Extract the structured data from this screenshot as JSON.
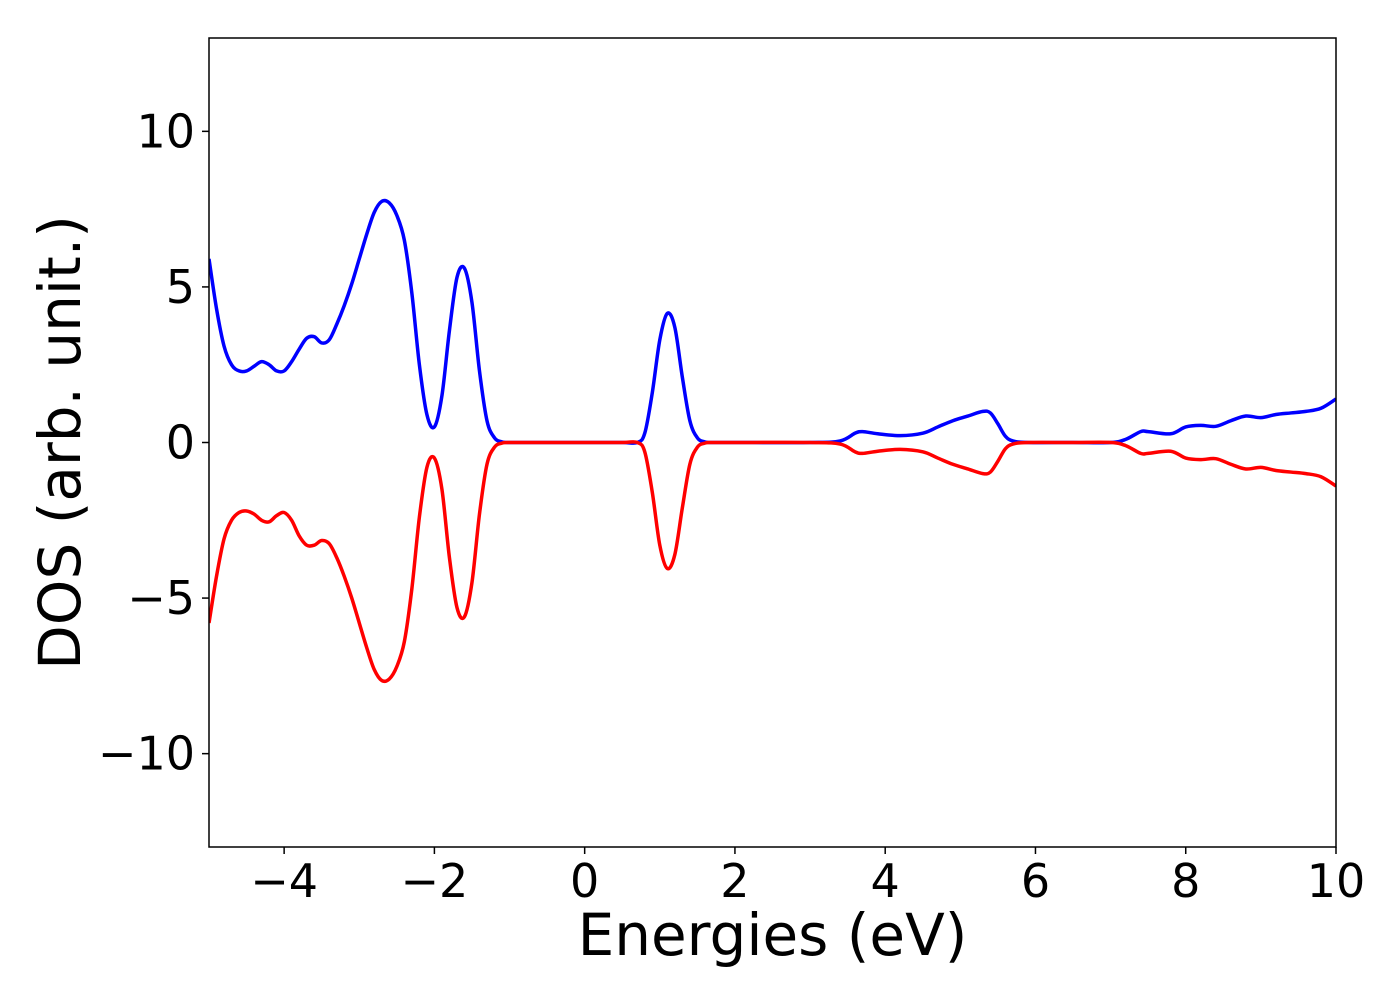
{
  "chart_data": {
    "type": "line",
    "title": "",
    "xlabel": "Energies (eV)",
    "ylabel": "DOS (arb. unit.)",
    "xlim": [
      -5,
      10
    ],
    "ylim": [
      -13,
      13
    ],
    "xticks": [
      -4,
      -2,
      0,
      2,
      4,
      6,
      8,
      10
    ],
    "yticks": [
      -10,
      -5,
      0,
      5,
      10
    ],
    "xtick_labels": [
      "−4",
      "−2",
      "0",
      "2",
      "4",
      "6",
      "8",
      "10"
    ],
    "ytick_labels": [
      "−10",
      "−5",
      "0",
      "5",
      "10"
    ],
    "grid": false,
    "legend": "none",
    "series": [
      {
        "color": "#0000ff",
        "x": [
          -5.0,
          -4.9,
          -4.8,
          -4.7,
          -4.6,
          -4.5,
          -4.4,
          -4.3,
          -4.2,
          -4.1,
          -4.0,
          -3.9,
          -3.8,
          -3.7,
          -3.6,
          -3.5,
          -3.4,
          -3.3,
          -3.2,
          -3.1,
          -3.0,
          -2.9,
          -2.8,
          -2.7,
          -2.6,
          -2.5,
          -2.4,
          -2.3,
          -2.2,
          -2.1,
          -2.0,
          -1.9,
          -1.8,
          -1.7,
          -1.6,
          -1.5,
          -1.4,
          -1.3,
          -1.2,
          -1.1,
          -1.0,
          -0.9,
          -0.8,
          -0.7,
          -0.6,
          -0.5,
          0.0,
          0.5,
          0.7,
          0.8,
          0.9,
          1.0,
          1.1,
          1.2,
          1.3,
          1.4,
          1.5,
          1.6,
          1.7,
          1.8,
          2.0,
          3.0,
          3.4,
          3.6,
          3.7,
          3.9,
          4.2,
          4.5,
          4.7,
          4.9,
          5.1,
          5.3,
          5.4,
          5.5,
          5.6,
          5.7,
          5.9,
          6.5,
          7.0,
          7.2,
          7.4,
          7.5,
          7.8,
          8.0,
          8.2,
          8.4,
          8.6,
          8.8,
          9.0,
          9.2,
          9.4,
          9.6,
          9.8,
          10.0
        ],
        "y": [
          5.9,
          4.3,
          3.1,
          2.5,
          2.3,
          2.3,
          2.45,
          2.6,
          2.5,
          2.3,
          2.3,
          2.6,
          3.0,
          3.35,
          3.4,
          3.2,
          3.3,
          3.8,
          4.4,
          5.1,
          5.9,
          6.7,
          7.4,
          7.75,
          7.7,
          7.3,
          6.5,
          4.8,
          2.5,
          0.9,
          0.5,
          1.5,
          3.6,
          5.3,
          5.6,
          4.5,
          2.3,
          0.7,
          0.15,
          0.02,
          0.0,
          0.0,
          0.0,
          0.0,
          0.0,
          0.0,
          0.0,
          0.0,
          0.0,
          0.3,
          1.6,
          3.3,
          4.15,
          3.7,
          2.1,
          0.7,
          0.15,
          0.02,
          0.0,
          0.0,
          0.0,
          0.0,
          0.05,
          0.3,
          0.35,
          0.28,
          0.22,
          0.3,
          0.5,
          0.7,
          0.85,
          1.0,
          0.95,
          0.6,
          0.2,
          0.05,
          0.0,
          0.0,
          0.0,
          0.1,
          0.35,
          0.35,
          0.28,
          0.5,
          0.55,
          0.52,
          0.7,
          0.85,
          0.8,
          0.9,
          0.95,
          1.0,
          1.1,
          1.4
        ]
      },
      {
        "color": "#ff0000",
        "x": [
          -5.0,
          -4.9,
          -4.8,
          -4.7,
          -4.6,
          -4.5,
          -4.4,
          -4.3,
          -4.2,
          -4.1,
          -4.0,
          -3.9,
          -3.8,
          -3.7,
          -3.6,
          -3.5,
          -3.4,
          -3.3,
          -3.2,
          -3.1,
          -3.0,
          -2.9,
          -2.8,
          -2.7,
          -2.6,
          -2.5,
          -2.4,
          -2.3,
          -2.2,
          -2.1,
          -2.0,
          -1.9,
          -1.8,
          -1.7,
          -1.6,
          -1.5,
          -1.4,
          -1.3,
          -1.2,
          -1.1,
          -1.0,
          -0.9,
          -0.8,
          -0.7,
          -0.6,
          -0.5,
          0.0,
          0.5,
          0.7,
          0.8,
          0.9,
          1.0,
          1.1,
          1.2,
          1.3,
          1.4,
          1.5,
          1.6,
          1.7,
          1.8,
          2.0,
          3.0,
          3.4,
          3.6,
          3.7,
          3.9,
          4.2,
          4.5,
          4.7,
          4.9,
          5.1,
          5.3,
          5.4,
          5.5,
          5.6,
          5.7,
          5.9,
          6.5,
          7.0,
          7.2,
          7.4,
          7.5,
          7.8,
          8.0,
          8.2,
          8.4,
          8.6,
          8.8,
          9.0,
          9.2,
          9.4,
          9.6,
          9.8,
          10.0
        ],
        "y": [
          -5.8,
          -4.3,
          -3.1,
          -2.5,
          -2.25,
          -2.2,
          -2.3,
          -2.5,
          -2.55,
          -2.35,
          -2.25,
          -2.5,
          -3.0,
          -3.3,
          -3.3,
          -3.15,
          -3.25,
          -3.7,
          -4.3,
          -5.0,
          -5.8,
          -6.6,
          -7.3,
          -7.65,
          -7.6,
          -7.2,
          -6.4,
          -4.7,
          -2.4,
          -0.8,
          -0.5,
          -1.5,
          -3.7,
          -5.3,
          -5.6,
          -4.5,
          -2.3,
          -0.7,
          -0.15,
          -0.02,
          0.0,
          0.0,
          0.0,
          0.0,
          0.0,
          0.0,
          0.0,
          0.0,
          0.0,
          -0.3,
          -1.6,
          -3.3,
          -4.05,
          -3.6,
          -2.1,
          -0.7,
          -0.15,
          -0.02,
          0.0,
          0.0,
          0.0,
          0.0,
          -0.05,
          -0.3,
          -0.35,
          -0.28,
          -0.22,
          -0.3,
          -0.5,
          -0.7,
          -0.85,
          -1.0,
          -0.95,
          -0.6,
          -0.2,
          -0.05,
          0.0,
          0.0,
          0.0,
          -0.1,
          -0.35,
          -0.35,
          -0.28,
          -0.5,
          -0.55,
          -0.52,
          -0.7,
          -0.85,
          -0.8,
          -0.9,
          -0.95,
          -1.0,
          -1.1,
          -1.4
        ]
      }
    ]
  }
}
